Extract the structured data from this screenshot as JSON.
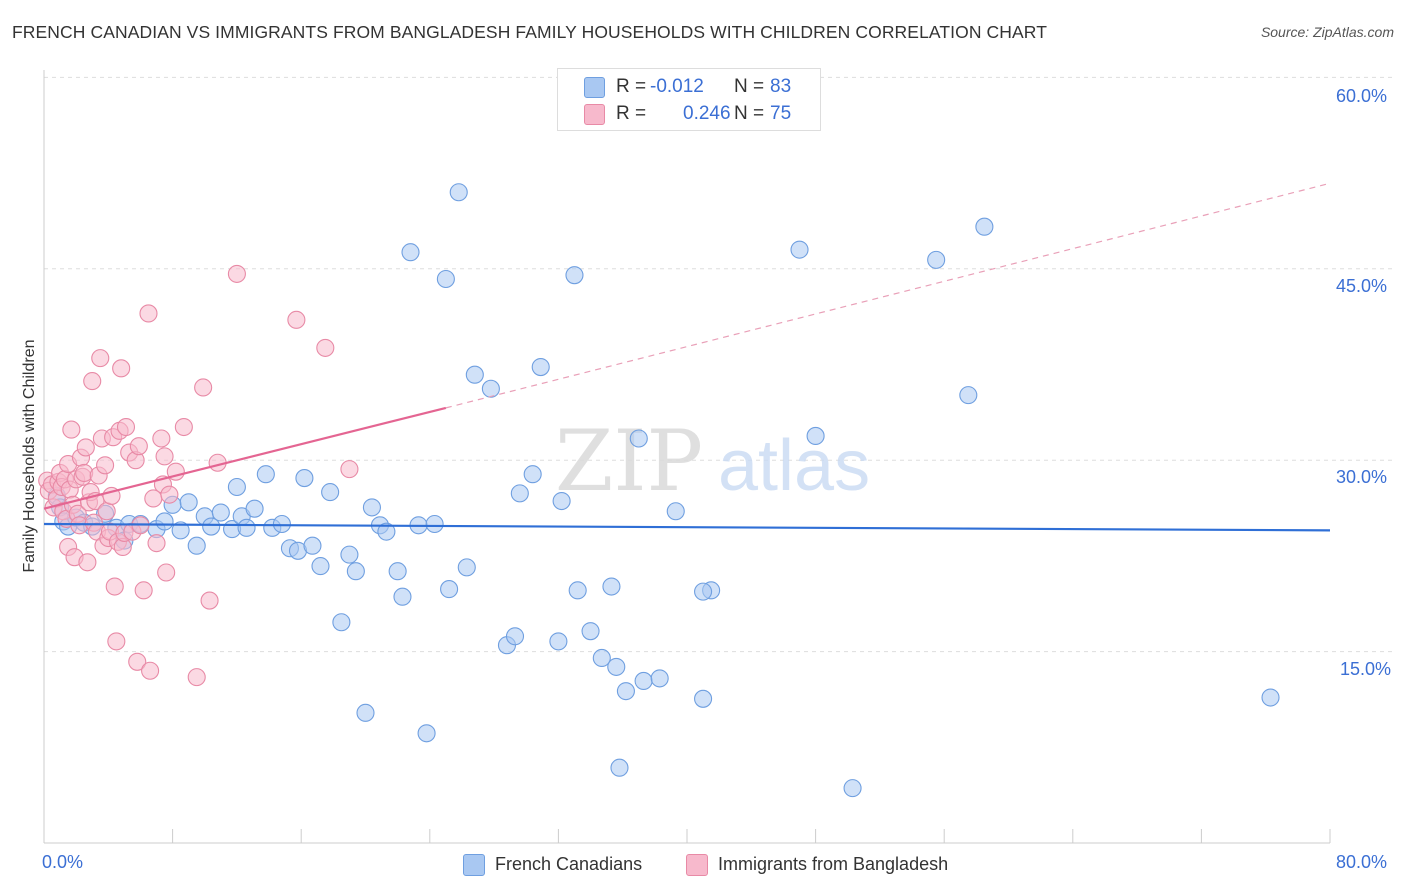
{
  "title": "FRENCH CANADIAN VS IMMIGRANTS FROM BANGLADESH FAMILY HOUSEHOLDS WITH CHILDREN CORRELATION CHART",
  "source": "Source: ZipAtlas.com",
  "watermark": {
    "zip": "ZIP",
    "atlas": "atlas"
  },
  "legend": {
    "rows": [
      {
        "r_label": "R =",
        "r_value": "-0.012",
        "n_label": "N =",
        "n_value": "83",
        "color": "#a9c8f2",
        "border": "#6f9fe0"
      },
      {
        "r_label": "R =",
        "r_value": "0.246",
        "n_label": "N =",
        "n_value": "75",
        "color": "#f7b9cc",
        "border": "#e88aa6"
      }
    ]
  },
  "bottom_legend": [
    {
      "label": "French Canadians",
      "color": "#a9c8f2",
      "border": "#6f9fe0"
    },
    {
      "label": "Immigrants from Bangladesh",
      "color": "#f7b9cc",
      "border": "#e88aa6"
    }
  ],
  "chart_data": {
    "type": "scatter",
    "title": "FRENCH CANADIAN VS IMMIGRANTS FROM BANGLADESH FAMILY HOUSEHOLDS WITH CHILDREN CORRELATION CHART",
    "xlabel": "",
    "ylabel": "Family Households with Children",
    "xlim": [
      0,
      80
    ],
    "ylim": [
      0,
      62
    ],
    "x_tick_labels": [
      "0.0%",
      "80.0%"
    ],
    "y_tick_labels": [
      "15.0%",
      "30.0%",
      "45.0%",
      "60.0%"
    ],
    "y_ticks": [
      15,
      30,
      45,
      60
    ],
    "grid": "horizontal dashed",
    "legend_position": "top-center",
    "series": [
      {
        "name": "French Canadians",
        "color": "#6f9fe0",
        "fill": "#a9c8f2",
        "trend": {
          "x0": 0,
          "y0": 25.0,
          "x1": 80,
          "y1": 24.5
        },
        "points": [
          [
            0.8,
            27.2
          ],
          [
            1.0,
            26.3
          ],
          [
            1.2,
            25.2
          ],
          [
            1.5,
            24.8
          ],
          [
            2.0,
            25.5
          ],
          [
            2.5,
            25.1
          ],
          [
            3.0,
            24.8
          ],
          [
            3.8,
            25.8
          ],
          [
            4.5,
            24.7
          ],
          [
            5.0,
            23.7
          ],
          [
            5.3,
            25.0
          ],
          [
            6.0,
            25.0
          ],
          [
            7.0,
            24.6
          ],
          [
            7.5,
            25.2
          ],
          [
            8.0,
            26.5
          ],
          [
            8.5,
            24.5
          ],
          [
            9.0,
            26.7
          ],
          [
            9.5,
            23.3
          ],
          [
            10.0,
            25.6
          ],
          [
            10.4,
            24.8
          ],
          [
            11.0,
            25.9
          ],
          [
            11.7,
            24.6
          ],
          [
            12.0,
            27.9
          ],
          [
            12.3,
            25.6
          ],
          [
            12.6,
            24.7
          ],
          [
            13.1,
            26.2
          ],
          [
            13.8,
            28.9
          ],
          [
            14.2,
            24.7
          ],
          [
            14.8,
            25.0
          ],
          [
            15.3,
            23.1
          ],
          [
            15.8,
            22.9
          ],
          [
            16.2,
            28.6
          ],
          [
            16.7,
            23.3
          ],
          [
            17.2,
            21.7
          ],
          [
            17.8,
            27.5
          ],
          [
            18.5,
            17.3
          ],
          [
            19.0,
            22.6
          ],
          [
            19.4,
            21.3
          ],
          [
            20.0,
            10.2
          ],
          [
            20.4,
            26.3
          ],
          [
            20.9,
            24.9
          ],
          [
            21.3,
            24.4
          ],
          [
            22.0,
            21.3
          ],
          [
            22.3,
            19.3
          ],
          [
            22.8,
            46.3
          ],
          [
            23.3,
            24.9
          ],
          [
            23.8,
            8.6
          ],
          [
            24.3,
            25.0
          ],
          [
            25.0,
            44.2
          ],
          [
            25.2,
            19.9
          ],
          [
            25.8,
            51.0
          ],
          [
            26.3,
            21.6
          ],
          [
            26.8,
            36.7
          ],
          [
            27.8,
            35.6
          ],
          [
            28.8,
            15.5
          ],
          [
            29.3,
            16.2
          ],
          [
            29.6,
            27.4
          ],
          [
            30.4,
            28.9
          ],
          [
            30.9,
            37.3
          ],
          [
            32.0,
            15.8
          ],
          [
            32.2,
            26.8
          ],
          [
            33.0,
            44.5
          ],
          [
            33.2,
            19.8
          ],
          [
            34.0,
            16.6
          ],
          [
            34.7,
            14.5
          ],
          [
            35.3,
            20.1
          ],
          [
            35.6,
            13.8
          ],
          [
            35.8,
            5.9
          ],
          [
            36.2,
            11.9
          ],
          [
            37.0,
            31.7
          ],
          [
            37.3,
            12.7
          ],
          [
            38.3,
            12.9
          ],
          [
            39.3,
            26.0
          ],
          [
            41.0,
            11.3
          ],
          [
            41.5,
            19.8
          ],
          [
            47.0,
            46.5
          ],
          [
            48.0,
            31.9
          ],
          [
            50.3,
            4.3
          ],
          [
            55.5,
            45.7
          ],
          [
            57.5,
            35.1
          ],
          [
            58.5,
            48.3
          ],
          [
            76.3,
            11.4
          ],
          [
            41.0,
            19.7
          ]
        ]
      },
      {
        "name": "Immigrants from Bangladesh",
        "color": "#e88aa6",
        "fill": "#f7b9cc",
        "trend": {
          "x0": 0,
          "y0": 26.2,
          "x1": 25,
          "y1": 34.1
        },
        "trend_extended": {
          "x0": 25,
          "y0": 34.1,
          "x1": 80,
          "y1": 51.7
        },
        "points": [
          [
            0.2,
            28.4
          ],
          [
            0.3,
            27.6
          ],
          [
            0.5,
            28.1
          ],
          [
            0.6,
            26.3
          ],
          [
            0.8,
            27.0
          ],
          [
            0.9,
            28.3
          ],
          [
            1.0,
            29.0
          ],
          [
            1.1,
            27.9
          ],
          [
            1.2,
            26.0
          ],
          [
            1.3,
            28.5
          ],
          [
            1.4,
            25.4
          ],
          [
            1.5,
            29.7
          ],
          [
            1.5,
            23.2
          ],
          [
            1.6,
            27.7
          ],
          [
            1.7,
            32.4
          ],
          [
            1.8,
            26.5
          ],
          [
            1.9,
            22.4
          ],
          [
            2.0,
            28.5
          ],
          [
            2.1,
            25.8
          ],
          [
            2.2,
            24.9
          ],
          [
            2.3,
            30.2
          ],
          [
            2.4,
            28.7
          ],
          [
            2.5,
            29.0
          ],
          [
            2.6,
            31.0
          ],
          [
            2.7,
            22.0
          ],
          [
            2.8,
            26.7
          ],
          [
            2.9,
            27.5
          ],
          [
            3.0,
            36.2
          ],
          [
            3.1,
            25.1
          ],
          [
            3.2,
            26.8
          ],
          [
            3.3,
            24.4
          ],
          [
            3.4,
            28.8
          ],
          [
            3.5,
            38.0
          ],
          [
            3.6,
            31.7
          ],
          [
            3.7,
            23.3
          ],
          [
            3.8,
            29.6
          ],
          [
            3.9,
            26.0
          ],
          [
            4.0,
            23.9
          ],
          [
            4.1,
            24.4
          ],
          [
            4.2,
            27.2
          ],
          [
            4.3,
            31.8
          ],
          [
            4.4,
            20.1
          ],
          [
            4.5,
            15.8
          ],
          [
            4.6,
            23.6
          ],
          [
            4.7,
            32.3
          ],
          [
            4.8,
            37.2
          ],
          [
            4.9,
            23.2
          ],
          [
            5.0,
            24.3
          ],
          [
            5.1,
            32.6
          ],
          [
            5.3,
            30.6
          ],
          [
            5.5,
            24.4
          ],
          [
            5.7,
            30.0
          ],
          [
            5.8,
            14.2
          ],
          [
            5.9,
            31.1
          ],
          [
            6.0,
            24.9
          ],
          [
            6.2,
            19.8
          ],
          [
            6.5,
            41.5
          ],
          [
            6.6,
            13.5
          ],
          [
            6.8,
            27.0
          ],
          [
            7.0,
            23.5
          ],
          [
            7.3,
            31.7
          ],
          [
            7.4,
            28.1
          ],
          [
            7.5,
            30.3
          ],
          [
            7.6,
            21.2
          ],
          [
            7.8,
            27.3
          ],
          [
            8.2,
            29.1
          ],
          [
            8.7,
            32.6
          ],
          [
            9.5,
            13.0
          ],
          [
            9.9,
            35.7
          ],
          [
            10.3,
            19.0
          ],
          [
            10.8,
            29.8
          ],
          [
            12.0,
            44.6
          ],
          [
            15.7,
            41.0
          ],
          [
            17.5,
            38.8
          ],
          [
            19.0,
            29.3
          ]
        ]
      }
    ]
  }
}
